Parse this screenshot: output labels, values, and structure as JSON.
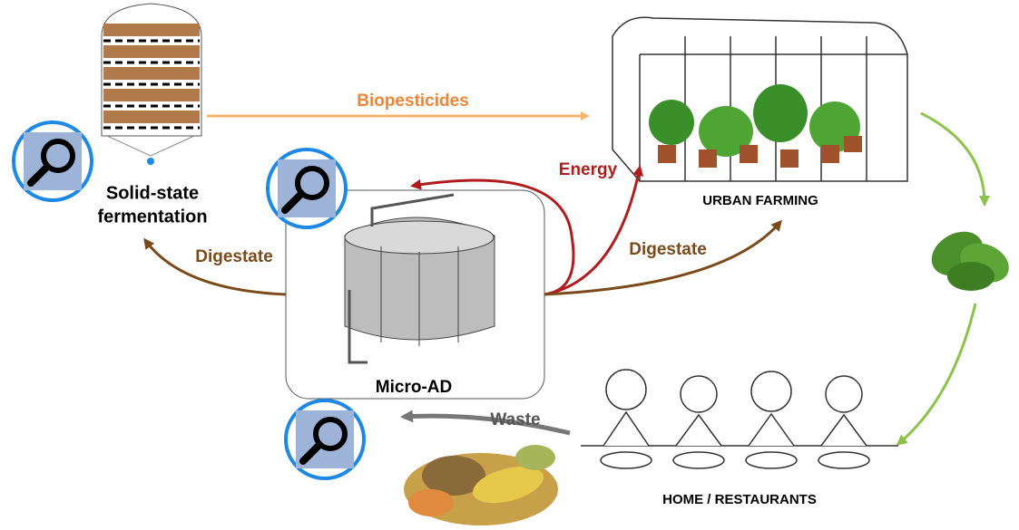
{
  "nodes": [
    {
      "label": [
        "Solid-state",
        "fermentation"
      ]
    },
    {
      "label": "URBAN FARMING"
    },
    {
      "label": "Micro-AD"
    },
    {
      "label": "HOME / RESTAURANTS"
    }
  ],
  "edges": [
    {
      "label": "Biopesticides"
    },
    {
      "label": "Energy"
    },
    {
      "label": "Digestate"
    },
    {
      "label": "Digestate"
    },
    {
      "label": "Waste"
    }
  ]
}
